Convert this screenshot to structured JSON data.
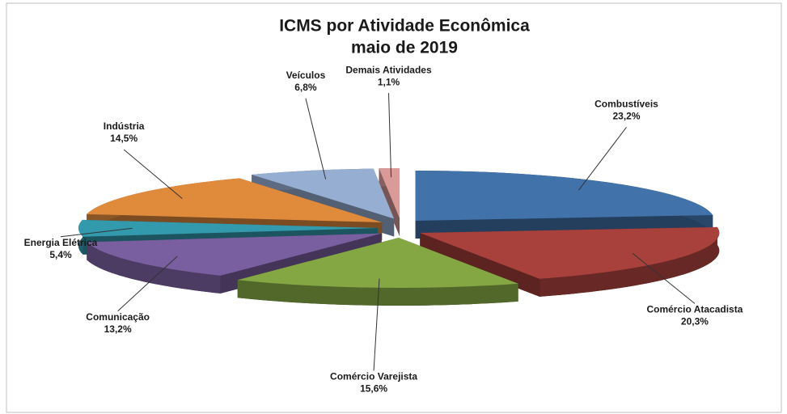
{
  "chart_data": {
    "type": "pie",
    "title": "ICMS por Atividade Econômica",
    "subtitle": "maio de 2019",
    "categories": [
      "Combustíveis",
      "Comércio Atacadista",
      "Comércio Varejista",
      "Comunicação",
      "Energia Elétrica",
      "Indústria",
      "Veículos",
      "Demais Atividades"
    ],
    "values": [
      23.2,
      20.3,
      15.6,
      13.2,
      5.4,
      14.5,
      6.8,
      1.1
    ],
    "value_labels": [
      "23,2%",
      "20,3%",
      "15,6%",
      "13,2%",
      "5,4%",
      "14,5%",
      "6,8%",
      "1,1%"
    ],
    "colors": [
      "#4272aa",
      "#a8403c",
      "#84a744",
      "#7a5fa0",
      "#3399ad",
      "#e08a3c",
      "#97aed3",
      "#d99a98"
    ]
  }
}
